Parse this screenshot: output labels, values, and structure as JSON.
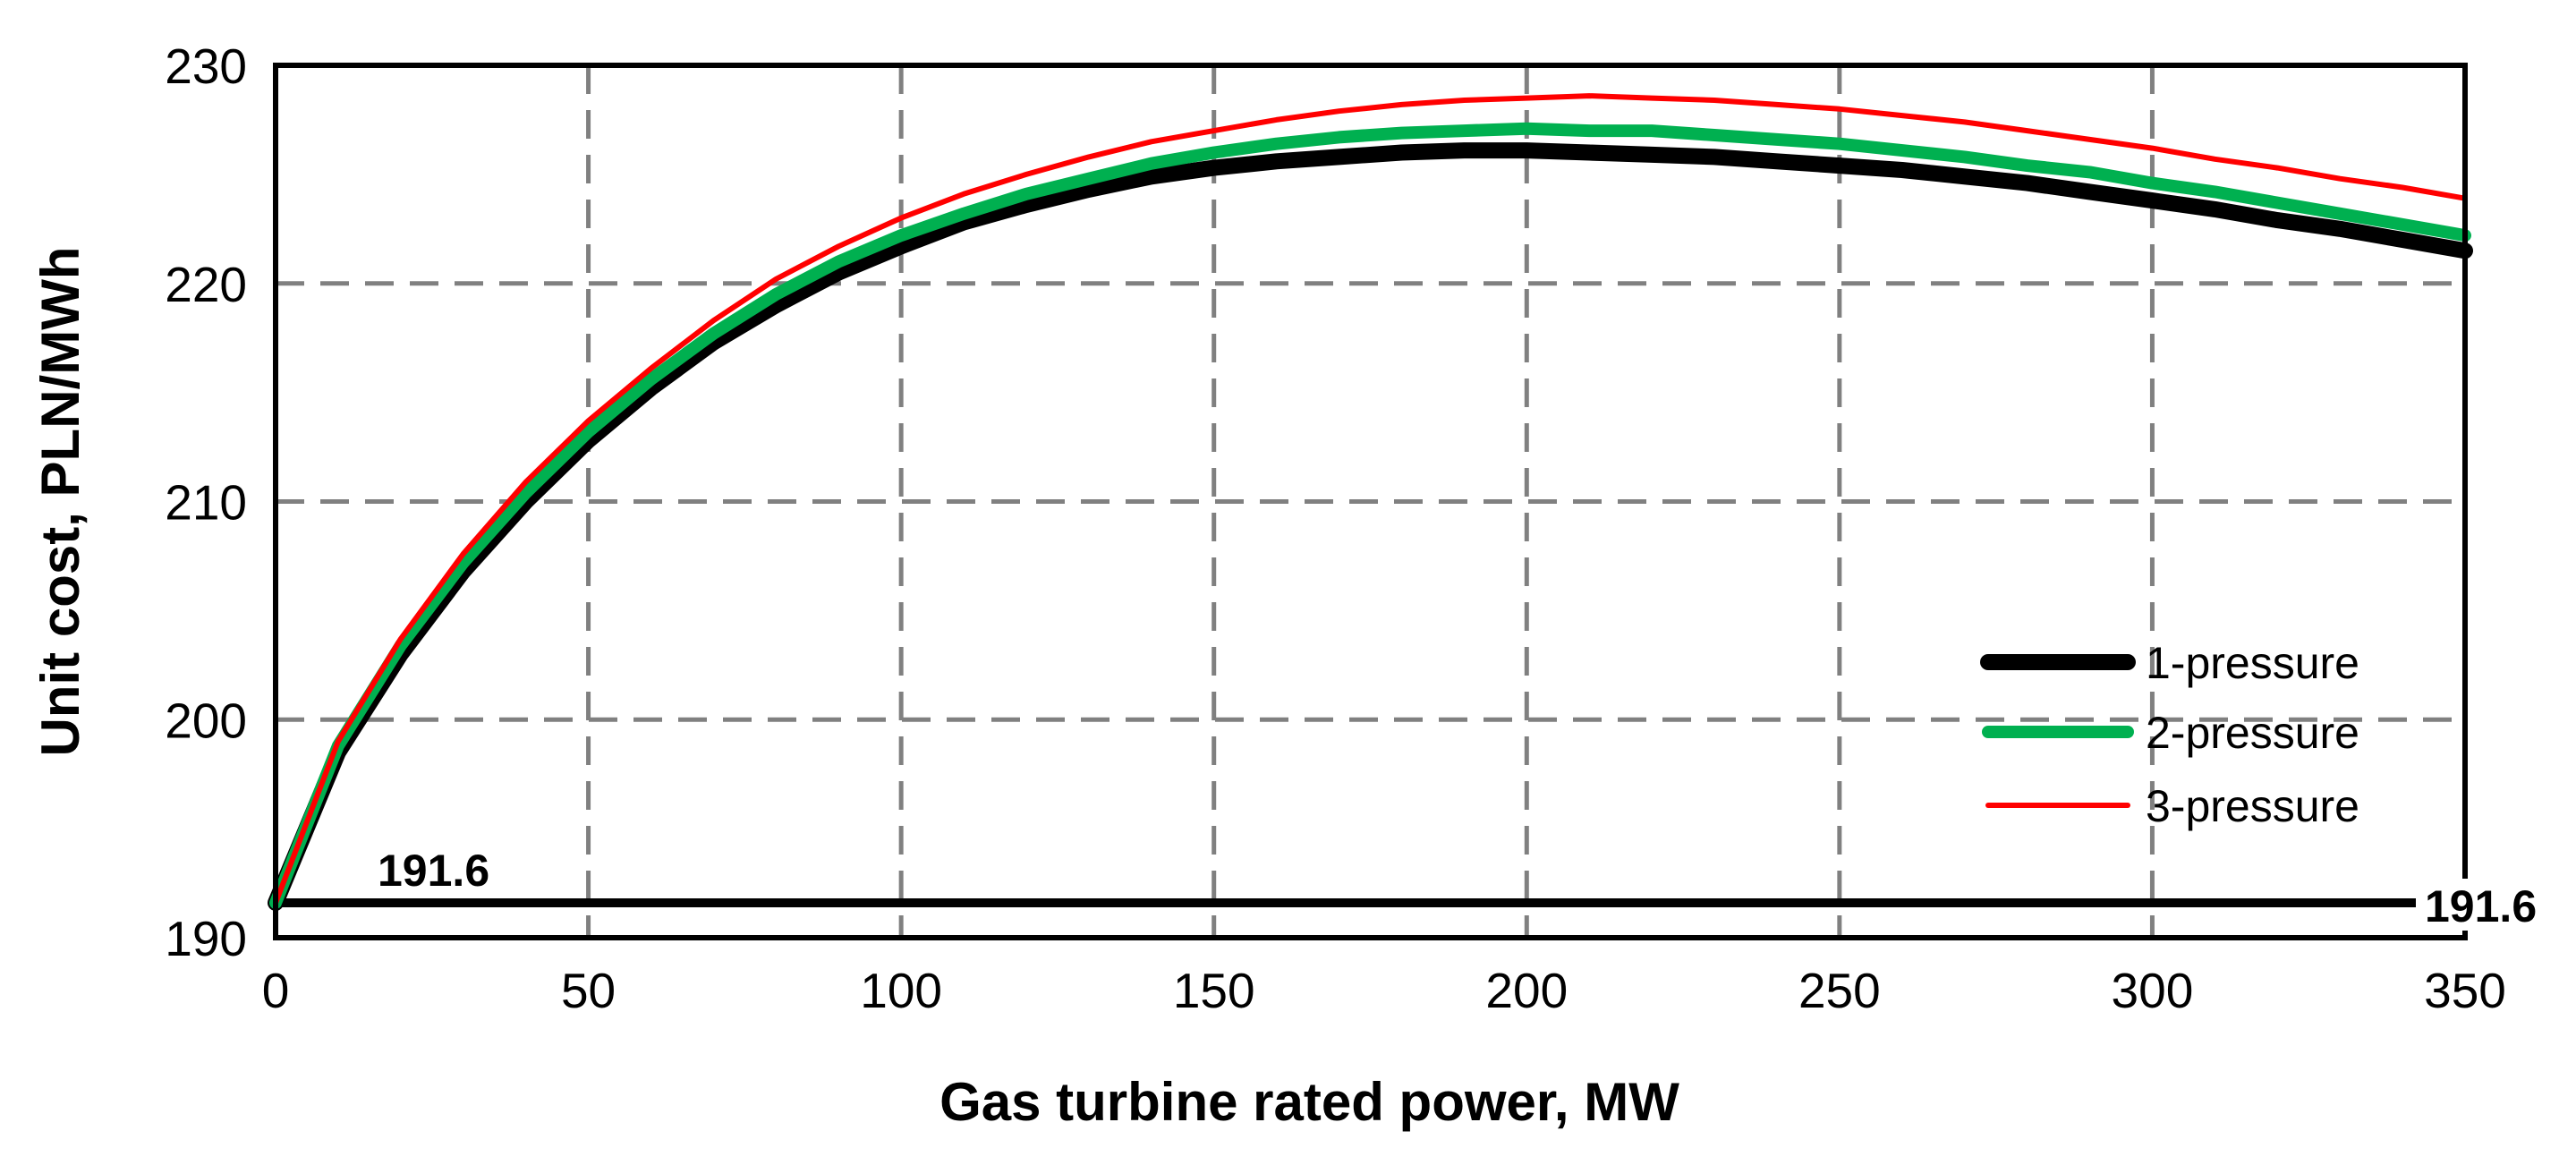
{
  "chart_data": {
    "type": "line",
    "title": "",
    "xlabel": "Gas turbine rated power, MW",
    "ylabel": "Unit cost, PLN/MWh",
    "xlim": [
      0,
      350
    ],
    "ylim": [
      190,
      230
    ],
    "xticks": [
      0,
      50,
      100,
      150,
      200,
      250,
      300,
      350
    ],
    "yticks": [
      190,
      200,
      210,
      220,
      230
    ],
    "x_tick_labels": [
      "0",
      "50",
      "100",
      "150",
      "200",
      "250",
      "300",
      "350"
    ],
    "y_tick_labels": [
      "190",
      "200",
      "210",
      "220",
      "230"
    ],
    "grid": true,
    "legend_position": "right",
    "series": [
      {
        "name": "1-pressure",
        "color": "#000000",
        "x": [
          0,
          10,
          20,
          30,
          40,
          50,
          60,
          70,
          80,
          90,
          100,
          110,
          120,
          130,
          140,
          150,
          160,
          170,
          180,
          190,
          200,
          210,
          220,
          230,
          240,
          250,
          260,
          270,
          280,
          290,
          300,
          310,
          320,
          330,
          340,
          350
        ],
        "y": [
          191.6,
          198.5,
          203.0,
          206.8,
          210.0,
          212.8,
          215.2,
          217.3,
          219.0,
          220.5,
          221.7,
          222.8,
          223.6,
          224.3,
          224.9,
          225.3,
          225.6,
          225.8,
          226.0,
          226.1,
          226.1,
          226.0,
          225.9,
          225.8,
          225.6,
          225.4,
          225.2,
          224.9,
          224.6,
          224.2,
          223.8,
          223.4,
          222.9,
          222.5,
          222.0,
          221.5
        ]
      },
      {
        "name": "2-pressure",
        "color": "#00B050",
        "x": [
          0,
          10,
          20,
          30,
          40,
          50,
          60,
          70,
          80,
          90,
          100,
          110,
          120,
          130,
          140,
          150,
          160,
          170,
          180,
          190,
          200,
          210,
          220,
          230,
          240,
          250,
          260,
          270,
          280,
          290,
          300,
          310,
          320,
          330,
          340,
          350
        ],
        "y": [
          191.6,
          198.8,
          203.4,
          207.2,
          210.4,
          213.2,
          215.6,
          217.7,
          219.5,
          221.0,
          222.2,
          223.2,
          224.1,
          224.8,
          225.5,
          226.0,
          226.4,
          226.7,
          226.9,
          227.0,
          227.1,
          227.0,
          227.0,
          226.8,
          226.6,
          226.4,
          226.1,
          225.8,
          225.4,
          225.1,
          224.6,
          224.2,
          223.7,
          223.2,
          222.7,
          222.2
        ]
      },
      {
        "name": "3-pressure",
        "color": "#FF0000",
        "x": [
          0,
          10,
          20,
          30,
          40,
          50,
          60,
          70,
          80,
          90,
          100,
          110,
          120,
          130,
          140,
          150,
          160,
          170,
          180,
          190,
          200,
          210,
          220,
          230,
          240,
          250,
          260,
          270,
          280,
          290,
          300,
          310,
          320,
          330,
          340,
          350
        ],
        "y": [
          191.6,
          199.0,
          203.7,
          207.6,
          210.9,
          213.7,
          216.1,
          218.3,
          220.2,
          221.7,
          223.0,
          224.1,
          225.0,
          225.8,
          226.5,
          227.0,
          227.5,
          227.9,
          228.2,
          228.4,
          228.5,
          228.6,
          228.5,
          228.4,
          228.2,
          228.0,
          227.7,
          227.4,
          227.0,
          226.6,
          226.2,
          225.7,
          225.3,
          224.8,
          224.4,
          223.9
        ]
      }
    ],
    "baseline": {
      "value": 191.6,
      "color": "#000000",
      "labels": [
        "191.6",
        "191.6"
      ]
    }
  }
}
